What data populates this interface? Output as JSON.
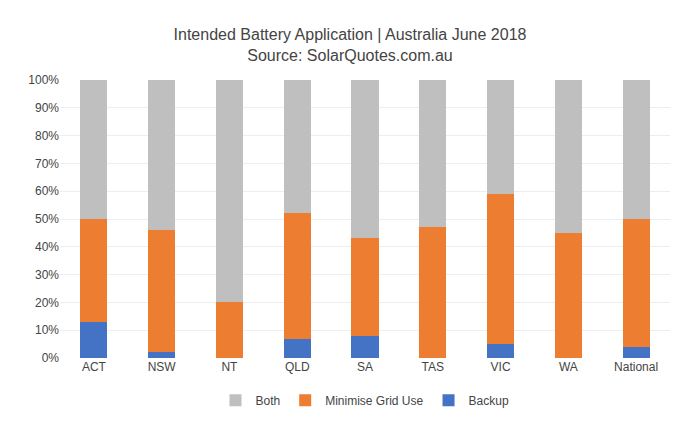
{
  "chart_data": {
    "type": "bar",
    "title": "Intended Battery Application | Australia June 2018",
    "subtitle": "Source: SolarQuotes.com.au",
    "categories": [
      "ACT",
      "NSW",
      "NT",
      "QLD",
      "SA",
      "TAS",
      "VIC",
      "WA",
      "National"
    ],
    "series": [
      {
        "name": "Backup",
        "color": "#4472c4",
        "values": [
          13,
          2,
          0,
          7,
          8,
          0,
          5,
          0,
          4
        ]
      },
      {
        "name": "Minimise Grid Use",
        "color": "#ed7d31",
        "values": [
          37,
          44,
          20,
          45,
          35,
          47,
          54,
          45,
          46
        ]
      },
      {
        "name": "Both",
        "color": "#bfbfbf",
        "values": [
          50,
          54,
          80,
          48,
          57,
          53,
          41,
          55,
          50
        ]
      }
    ],
    "stacked": true,
    "ylim": [
      0,
      100
    ],
    "yticks": [
      {
        "value": 0,
        "label": "0%"
      },
      {
        "value": 10,
        "label": "10%"
      },
      {
        "value": 20,
        "label": "20%"
      },
      {
        "value": 30,
        "label": "30%"
      },
      {
        "value": 40,
        "label": "40%"
      },
      {
        "value": 50,
        "label": "50%"
      },
      {
        "value": 60,
        "label": "60%"
      },
      {
        "value": 70,
        "label": "70%"
      },
      {
        "value": 80,
        "label": "80%"
      },
      {
        "value": 90,
        "label": "90%"
      },
      {
        "value": 100,
        "label": "100%"
      }
    ],
    "grid": true,
    "legend": "bottom"
  }
}
